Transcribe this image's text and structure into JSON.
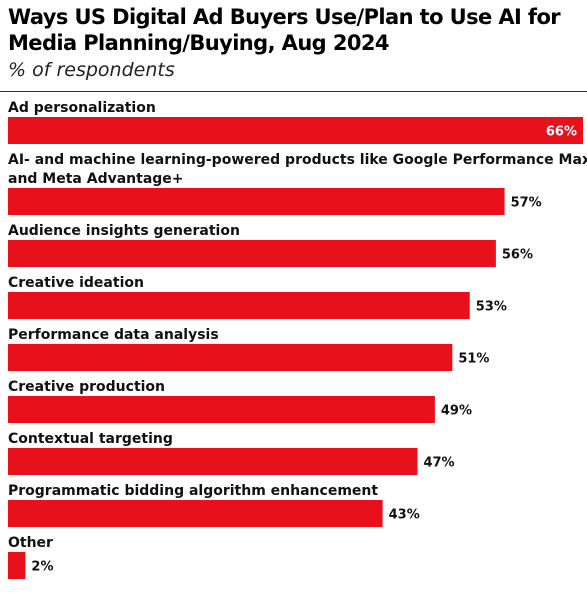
{
  "colors": {
    "accent": "#e8101b",
    "text": "#111111",
    "value_inside": "#ffffff"
  },
  "chart_data": {
    "type": "bar",
    "orientation": "horizontal",
    "title": "Ways US Digital Ad Buyers Use/Plan to Use AI for Media Planning/Buying, Aug 2024",
    "subtitle": "% of respondents",
    "categories": [
      [
        "Ad personalization"
      ],
      [
        "AI- and machine learning-powered products like Google Performance Max",
        "and Meta Advantage+"
      ],
      [
        "Audience insights generation"
      ],
      [
        "Creative ideation"
      ],
      [
        "Performance data analysis"
      ],
      [
        "Creative production"
      ],
      [
        "Contextual targeting"
      ],
      [
        "Programmatic bidding algorithm enhancement"
      ],
      [
        "Other"
      ]
    ],
    "values": [
      66,
      57,
      56,
      53,
      51,
      49,
      47,
      43,
      2
    ],
    "value_labels": [
      "66%",
      "57%",
      "56%",
      "53%",
      "51%",
      "49%",
      "47%",
      "43%",
      "2%"
    ],
    "xlim": [
      0,
      66
    ],
    "grid": false,
    "legend": "none"
  }
}
